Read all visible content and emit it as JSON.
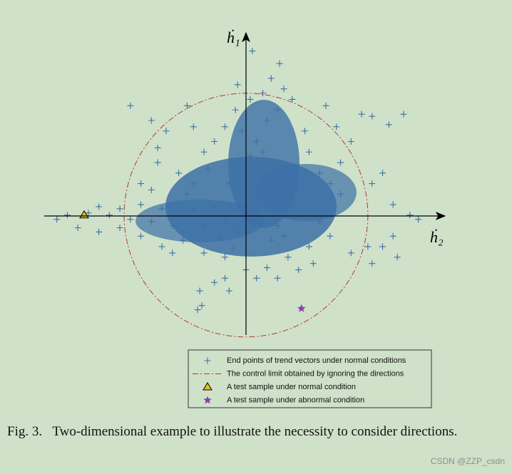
{
  "chart_data": {
    "type": "scatter",
    "x_label": "ḣ₂",
    "y_label": "ḣ₁",
    "xlim": [
      -9.6,
      9.4
    ],
    "ylim": [
      -5.7,
      8.6
    ],
    "series": [
      {
        "name": "End points of trend vectors under normal conditions",
        "color": "#3c70a6",
        "marker": "plus",
        "x": [
          0,
          0.5,
          -0.5,
          1,
          -1,
          0.3,
          -0.3,
          1.5,
          -1.5,
          2,
          -2,
          0.8,
          -0.8,
          1.2,
          -1.2,
          2.5,
          -2.5,
          0.2,
          0.5,
          -0.2,
          1,
          1.5,
          0.8,
          1.2,
          0.3,
          1.8,
          2.2,
          -0.5,
          -1,
          -1.5,
          -2.5,
          -2.8,
          -2,
          3,
          3.5,
          4,
          4.5,
          5.5,
          6,
          7.5,
          6.8,
          5,
          4.5,
          6.5,
          6,
          7,
          7.8,
          8.2,
          7,
          6.5,
          5.8,
          7.2,
          6,
          5,
          4,
          3,
          2,
          1,
          -1,
          -2,
          -3,
          -3.5,
          -4,
          -4.5,
          -5,
          -5.5,
          -6,
          -6.5,
          -7,
          -7.5,
          -8.5,
          -9,
          -8,
          -7,
          -6,
          -5,
          -4,
          -3.5,
          -4.5,
          -5,
          -4.2,
          -3.2,
          -2.5,
          -1,
          -0.8,
          -1.5,
          -2.2,
          -2.1,
          -2.3,
          0.5,
          1.5,
          2.5,
          3.2,
          -5.5,
          -4.5,
          -3.8,
          -4.2,
          -2.8,
          3.5,
          2.8,
          0.2,
          -0.4,
          1.6,
          0.8,
          -1.8,
          2.3,
          1.8,
          -0.6,
          0,
          3.8,
          4.3
        ],
        "y": [
          0,
          0.3,
          0.2,
          0.5,
          -0.3,
          1,
          -0.8,
          -0.5,
          0.4,
          1,
          -0.5,
          2,
          1.5,
          -1.2,
          -1.1,
          0.2,
          0.3,
          2.8,
          3.5,
          4,
          4.5,
          5,
          5.8,
          6.5,
          7.8,
          6,
          5.5,
          5,
          4.2,
          3.5,
          4.2,
          5.2,
          3,
          3,
          2,
          1.5,
          1,
          4.8,
          4.7,
          4.8,
          4.3,
          3.5,
          2.5,
          2,
          1.5,
          0.5,
          0,
          -0.2,
          -1,
          -1.5,
          -1.5,
          -2,
          -2.3,
          -1.8,
          -1,
          -1.5,
          -2,
          -2.5,
          -2,
          -1.8,
          -1.2,
          -0.5,
          0.3,
          -0.3,
          0.5,
          -0.2,
          0.3,
          0,
          0.4,
          0.1,
          0,
          -0.2,
          -0.6,
          -0.8,
          -0.6,
          -1,
          -1.5,
          -1.8,
          1.2,
          1.5,
          2.5,
          2,
          1.5,
          -3,
          -3.6,
          -3.2,
          -3.6,
          -4.3,
          -4.5,
          -3,
          -3,
          -2.6,
          -2.3,
          5.2,
          4.5,
          4,
          3.2,
          1,
          -0.3,
          4,
          5.5,
          6.2,
          7.2,
          3,
          2.2,
          2.2,
          -1,
          -1.6,
          -2.6,
          5.2,
          4.2
        ]
      },
      {
        "name": "A test sample under normal condition",
        "color": "#e2c21c",
        "marker": "triangle",
        "x": [
          -7.7
        ],
        "y": [
          0
        ]
      },
      {
        "name": "A test sample under abnormal condition",
        "color": "#8a3fae",
        "marker": "star",
        "x": [
          2.64
        ],
        "y": [
          -4.44
        ]
      }
    ],
    "control_limit": {
      "name": "The control limit obtained by ignoring the directions",
      "color": "#b03a3a",
      "radius": 5.8
    },
    "caption": "Fig. 3.   Two-dimensional example to illustrate the necessity to consider directions."
  },
  "watermark": "CSDN @ZZP_csdn"
}
